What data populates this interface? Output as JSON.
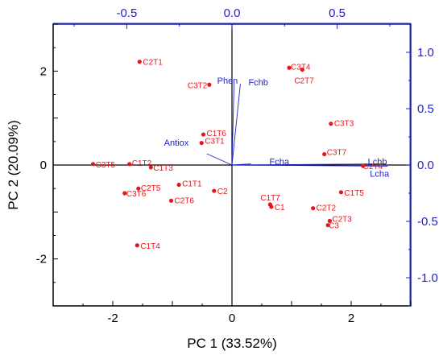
{
  "chart_data": {
    "type": "scatter",
    "xlabel": "PC 1 (33.52%)",
    "ylabel": "PC 2 (20.09%)",
    "xlim": [
      -3,
      3
    ],
    "ylim": [
      -3,
      3
    ],
    "xticks": [
      -2,
      0,
      2
    ],
    "yticks": [
      -2,
      0,
      2
    ],
    "loading_xlim": [
      -0.85,
      0.85
    ],
    "loading_ylim": [
      -1.25,
      1.25
    ],
    "loading_xticks": [
      "-0.5",
      "0.0",
      "0.5"
    ],
    "loading_yticks": [
      "-1.0",
      "-0.5",
      "0.0",
      "0.5",
      "1.0"
    ],
    "score_color": "#e8161b",
    "loading_color": "#1f24c9",
    "scores": [
      {
        "label": "C2T1",
        "x": -1.55,
        "y": 2.2
      },
      {
        "label": "C3T2",
        "x": -0.38,
        "y": 1.71
      },
      {
        "label": "C3T4",
        "x": 0.96,
        "y": 2.07
      },
      {
        "label": "C2T7",
        "x": 1.18,
        "y": 2.03
      },
      {
        "label": "C3T3",
        "x": 1.66,
        "y": 0.88
      },
      {
        "label": "C1T6",
        "x": -0.48,
        "y": 0.65
      },
      {
        "label": "C3T1",
        "x": -0.51,
        "y": 0.47
      },
      {
        "label": "C3T7",
        "x": 1.55,
        "y": 0.23
      },
      {
        "label": "C2T4",
        "x": 2.2,
        "y": -0.02
      },
      {
        "label": "C3T5",
        "x": -2.33,
        "y": 0.02
      },
      {
        "label": "C1T2",
        "x": -1.72,
        "y": 0.02
      },
      {
        "label": "C1T3",
        "x": -1.36,
        "y": -0.05
      },
      {
        "label": "C1T1",
        "x": -0.89,
        "y": -0.42
      },
      {
        "label": "C2",
        "x": -0.3,
        "y": -0.55
      },
      {
        "label": "C2T5",
        "x": -1.57,
        "y": -0.5
      },
      {
        "label": "C3T6",
        "x": -1.8,
        "y": -0.6
      },
      {
        "label": "C2T6",
        "x": -1.02,
        "y": -0.76
      },
      {
        "label": "C1T5",
        "x": 1.83,
        "y": -0.58
      },
      {
        "label": "C1T7",
        "x": 0.64,
        "y": -0.84
      },
      {
        "label": "C1",
        "x": 0.66,
        "y": -0.89
      },
      {
        "label": "C2T2",
        "x": 1.36,
        "y": -0.92
      },
      {
        "label": "C2T3",
        "x": 1.64,
        "y": -1.19
      },
      {
        "label": "C3",
        "x": 1.61,
        "y": -1.28
      },
      {
        "label": "C1T4",
        "x": -1.59,
        "y": -1.71
      }
    ],
    "loadings": [
      {
        "label": "Phen",
        "x": 0.01,
        "y": 0.73
      },
      {
        "label": "Fchb",
        "x": 0.04,
        "y": 0.72
      },
      {
        "label": "Antiox",
        "x": -0.12,
        "y": 0.1
      },
      {
        "label": "Fcha",
        "x": 0.09,
        "y": 0.01
      },
      {
        "label": "Lchb",
        "x": 0.73,
        "y": 0.01
      },
      {
        "label": "Lcha",
        "x": 0.74,
        "y": -0.01
      }
    ]
  }
}
